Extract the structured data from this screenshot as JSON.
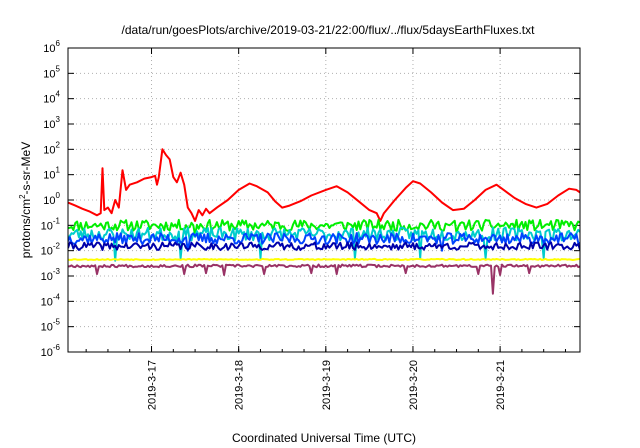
{
  "chart_data": {
    "type": "line",
    "title": "/data/run/goesPlots/archive/2019-03-21/22:00/flux/../flux/5daysEarthFluxes.txt",
    "xlabel": "Coordinated Universal Time (UTC)",
    "ylabel": "protons/cm2-s-sr-MeV",
    "ylabel_parts": {
      "pre": "protons/cm",
      "sup": "2",
      "post": "-s-sr-MeV"
    },
    "yscale": "log",
    "ylim": [
      1e-06,
      1000000.0
    ],
    "yticks": [
      {
        "base": "10",
        "exp": "-6"
      },
      {
        "base": "10",
        "exp": "-5"
      },
      {
        "base": "10",
        "exp": "-4"
      },
      {
        "base": "10",
        "exp": "-3"
      },
      {
        "base": "10",
        "exp": "-2"
      },
      {
        "base": "10",
        "exp": "-1"
      },
      {
        "base": "10",
        "exp": "0"
      },
      {
        "base": "10",
        "exp": "1"
      },
      {
        "base": "10",
        "exp": "2"
      },
      {
        "base": "10",
        "exp": "3"
      },
      {
        "base": "10",
        "exp": "4"
      },
      {
        "base": "10",
        "exp": "5"
      },
      {
        "base": "10",
        "exp": "6"
      }
    ],
    "xlim": [
      "2019-03-16T01:00",
      "2019-03-21T22:00"
    ],
    "xticks": [
      "2019-3-17",
      "2019-3-18",
      "2019-3-19",
      "2019-3-20",
      "2019-3-21"
    ],
    "grid": true,
    "series": [
      {
        "color": "#ff0000",
        "points": [
          [
            "2019-03-16T01:00",
            0.8
          ],
          [
            "2019-03-16T03:00",
            0.6
          ],
          [
            "2019-03-16T05:00",
            0.45
          ],
          [
            "2019-03-16T07:00",
            0.35
          ],
          [
            "2019-03-16T09:00",
            0.25
          ],
          [
            "2019-03-16T10:00",
            0.3
          ],
          [
            "2019-03-16T10:30",
            18
          ],
          [
            "2019-03-16T11:00",
            0.4
          ],
          [
            "2019-03-16T12:00",
            0.5
          ],
          [
            "2019-03-16T13:00",
            0.3
          ],
          [
            "2019-03-16T14:00",
            1.0
          ],
          [
            "2019-03-16T15:00",
            0.5
          ],
          [
            "2019-03-16T16:00",
            15
          ],
          [
            "2019-03-16T17:00",
            2.5
          ],
          [
            "2019-03-16T18:00",
            4
          ],
          [
            "2019-03-16T20:00",
            5
          ],
          [
            "2019-03-16T22:00",
            7
          ],
          [
            "2019-03-17T00:00",
            8
          ],
          [
            "2019-03-17T01:00",
            9
          ],
          [
            "2019-03-17T01:30",
            4
          ],
          [
            "2019-03-17T02:00",
            8
          ],
          [
            "2019-03-17T03:00",
            100
          ],
          [
            "2019-03-17T04:00",
            60
          ],
          [
            "2019-03-17T05:00",
            40
          ],
          [
            "2019-03-17T06:00",
            8
          ],
          [
            "2019-03-17T07:00",
            5
          ],
          [
            "2019-03-17T08:00",
            12
          ],
          [
            "2019-03-17T09:00",
            4
          ],
          [
            "2019-03-17T10:00",
            0.5
          ],
          [
            "2019-03-17T11:00",
            0.3
          ],
          [
            "2019-03-17T12:00",
            0.15
          ],
          [
            "2019-03-17T13:00",
            0.4
          ],
          [
            "2019-03-17T14:00",
            0.25
          ],
          [
            "2019-03-17T15:00",
            0.45
          ],
          [
            "2019-03-17T16:00",
            0.3
          ],
          [
            "2019-03-17T18:00",
            0.5
          ],
          [
            "2019-03-17T21:00",
            1.0
          ],
          [
            "2019-03-18T00:00",
            2.5
          ],
          [
            "2019-03-18T03:00",
            4.5
          ],
          [
            "2019-03-18T05:00",
            3.5
          ],
          [
            "2019-03-18T08:00",
            2
          ],
          [
            "2019-03-18T10:00",
            0.9
          ],
          [
            "2019-03-18T12:00",
            0.5
          ],
          [
            "2019-03-18T14:00",
            0.6
          ],
          [
            "2019-03-18T17:00",
            0.9
          ],
          [
            "2019-03-18T20:00",
            1.5
          ],
          [
            "2019-03-19T00:00",
            2.5
          ],
          [
            "2019-03-19T03:00",
            3.5
          ],
          [
            "2019-03-19T06:00",
            2.0
          ],
          [
            "2019-03-19T09:00",
            0.9
          ],
          [
            "2019-03-19T12:00",
            0.4
          ],
          [
            "2019-03-19T14:00",
            0.3
          ],
          [
            "2019-03-19T15:00",
            0.15
          ],
          [
            "2019-03-19T16:00",
            0.3
          ],
          [
            "2019-03-19T19:00",
            1.0
          ],
          [
            "2019-03-19T22:00",
            3.0
          ],
          [
            "2019-03-20T00:00",
            5.5
          ],
          [
            "2019-03-20T02:00",
            4.5
          ],
          [
            "2019-03-20T05:00",
            2
          ],
          [
            "2019-03-20T08:00",
            0.8
          ],
          [
            "2019-03-20T11:00",
            0.4
          ],
          [
            "2019-03-20T14:00",
            0.45
          ],
          [
            "2019-03-20T17:00",
            1.0
          ],
          [
            "2019-03-20T20:00",
            2.5
          ],
          [
            "2019-03-20T23:00",
            4
          ],
          [
            "2019-03-21T01:00",
            2.5
          ],
          [
            "2019-03-21T04:00",
            1.2
          ],
          [
            "2019-03-21T07:00",
            0.7
          ],
          [
            "2019-03-21T10:00",
            0.5
          ],
          [
            "2019-03-21T13:00",
            0.7
          ],
          [
            "2019-03-21T16:00",
            1.5
          ],
          [
            "2019-03-21T19:00",
            2.8
          ],
          [
            "2019-03-21T21:00",
            2.5
          ],
          [
            "2019-03-21T22:00",
            2.0
          ]
        ]
      },
      {
        "color": "#00ee00",
        "base": 0.1,
        "jitter": 0.5,
        "dips": [
          [
            "2019-03-17T12:00",
            0.04
          ],
          [
            "2019-03-20T12:00",
            0.05
          ]
        ],
        "seed": 11
      },
      {
        "color": "#00cccc",
        "base": 0.045,
        "jitter": 0.6,
        "dips": [
          [
            "2019-03-16T14:00",
            0.004
          ],
          [
            "2019-03-17T08:00",
            0.005
          ],
          [
            "2019-03-18T06:00",
            0.005
          ],
          [
            "2019-03-19T08:00",
            0.005
          ],
          [
            "2019-03-20T02:00",
            0.005
          ],
          [
            "2019-03-20T20:00",
            0.005
          ],
          [
            "2019-03-21T12:00",
            0.005
          ]
        ],
        "seed": 23
      },
      {
        "color": "#0044ff",
        "base": 0.03,
        "jitter": 0.5,
        "dips": [
          [
            "2019-03-17T10:00",
            0.01
          ],
          [
            "2019-03-20T08:00",
            0.01
          ]
        ],
        "seed": 37
      },
      {
        "color": "#0000aa",
        "base": 0.015,
        "jitter": 0.35,
        "dips": [],
        "seed": 41
      },
      {
        "color": "#ffff00",
        "base": 0.0045,
        "jitter": 0.05,
        "dips": [],
        "seed": 53
      },
      {
        "color": "#993366",
        "base": 0.0025,
        "jitter": 0.12,
        "dips": [
          [
            "2019-03-16T09:00",
            0.0012
          ],
          [
            "2019-03-17T09:00",
            0.0012
          ],
          [
            "2019-03-17T15:00",
            0.0013
          ],
          [
            "2019-03-17T20:00",
            0.0011
          ],
          [
            "2019-03-18T07:00",
            0.0012
          ],
          [
            "2019-03-18T20:00",
            0.0013
          ],
          [
            "2019-03-19T03:00",
            0.0012
          ],
          [
            "2019-03-19T22:00",
            0.0013
          ],
          [
            "2019-03-20T18:00",
            0.0012
          ],
          [
            "2019-03-20T22:00",
            0.0002
          ],
          [
            "2019-03-21T00:00",
            0.0011
          ],
          [
            "2019-03-21T08:00",
            0.0013
          ]
        ],
        "seed": 67
      }
    ]
  }
}
